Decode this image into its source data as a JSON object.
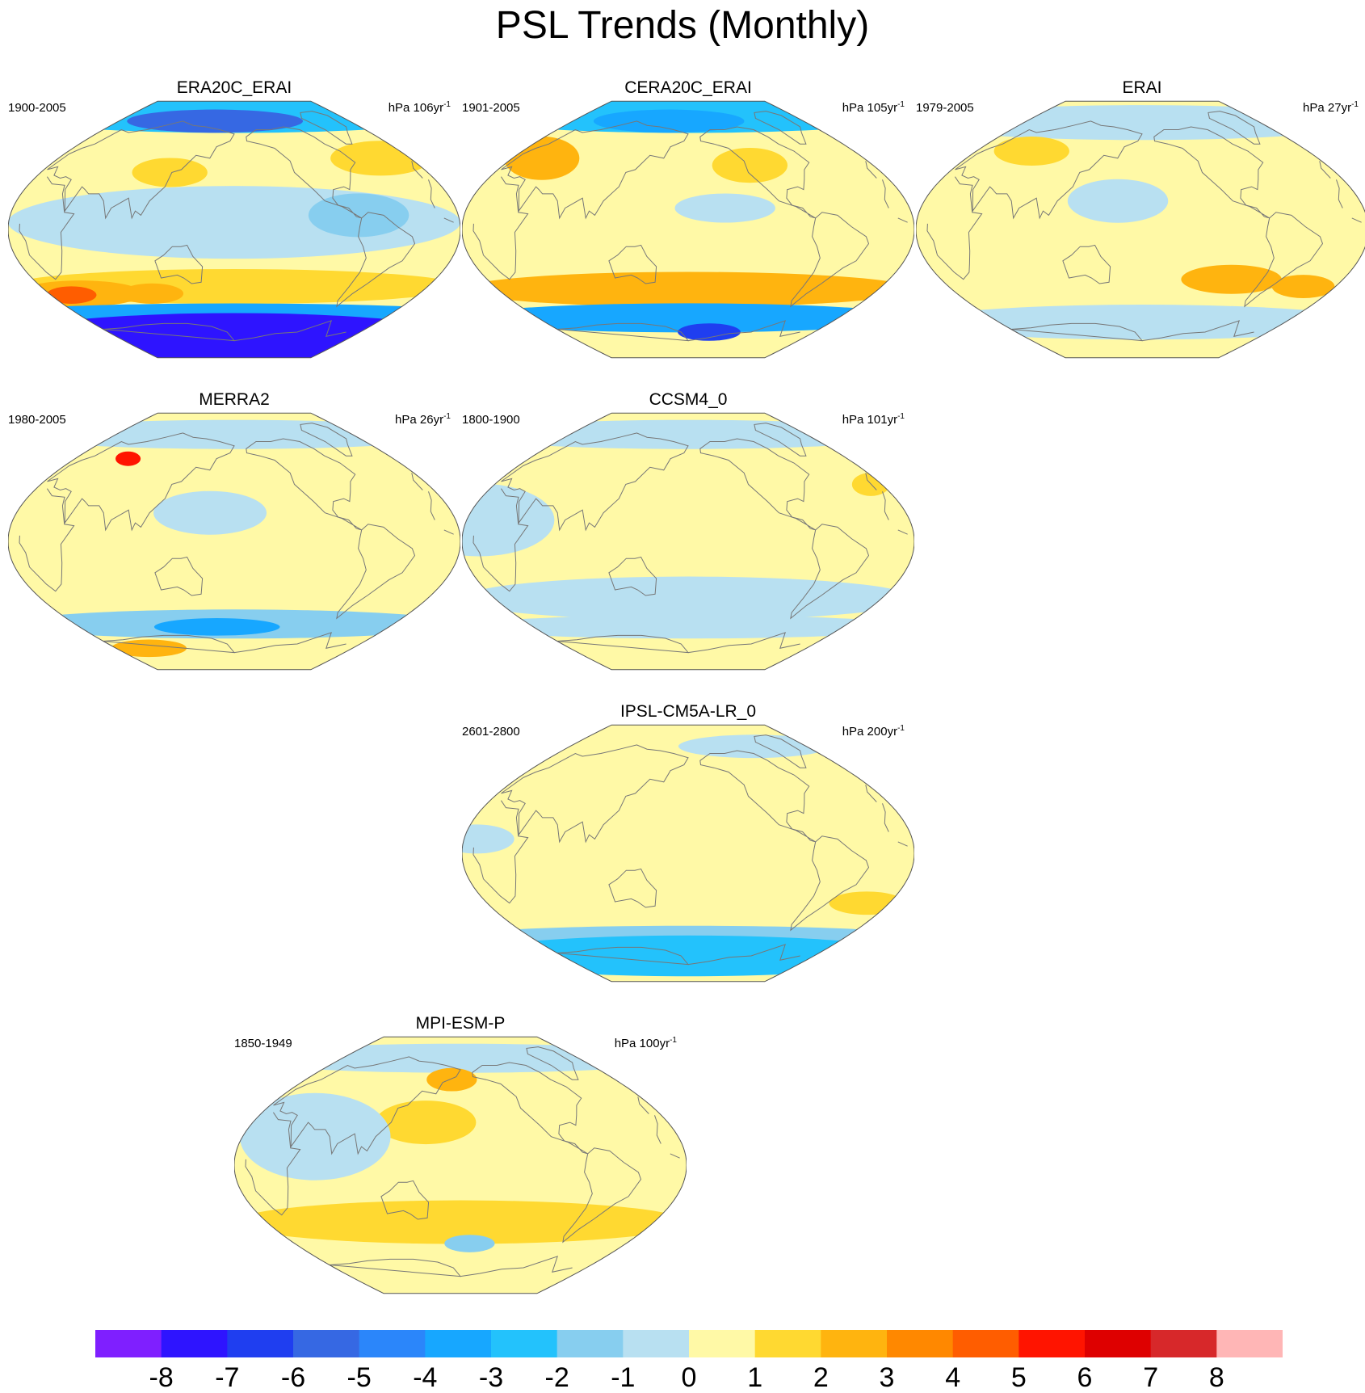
{
  "figure": {
    "title": "PSL Trends (Monthly)"
  },
  "panels": [
    {
      "id": "era20c",
      "title": "ERA20C_ERAI",
      "period": "1900-2005",
      "units": "hPa 106yr",
      "units_exp": "-1",
      "blobs": [
        {
          "lon": 0,
          "lat": 80,
          "rx": 180,
          "ry": 12,
          "level": -3
        },
        {
          "lon": -30,
          "lat": 76,
          "rx": 70,
          "ry": 8,
          "level": -6
        },
        {
          "lon": 150,
          "lat": 50,
          "rx": 40,
          "ry": 12,
          "level": 1
        },
        {
          "lon": -60,
          "lat": 40,
          "rx": 30,
          "ry": 10,
          "level": 1
        },
        {
          "lon": 0,
          "lat": 5,
          "rx": 180,
          "ry": 25,
          "level": -1
        },
        {
          "lon": 100,
          "lat": 10,
          "rx": 40,
          "ry": 15,
          "level": -2
        },
        {
          "lon": 0,
          "lat": -40,
          "rx": 180,
          "ry": 12,
          "level": 1
        },
        {
          "lon": -150,
          "lat": -45,
          "rx": 50,
          "ry": 9,
          "level": 2
        },
        {
          "lon": -160,
          "lat": -46,
          "rx": 20,
          "ry": 6,
          "level": 4
        },
        {
          "lon": -80,
          "lat": -45,
          "rx": 25,
          "ry": 7,
          "level": 2
        },
        {
          "lon": 0,
          "lat": -58,
          "rx": 180,
          "ry": 6,
          "level": -4
        },
        {
          "lon": 0,
          "lat": -75,
          "rx": 180,
          "ry": 16,
          "level": -8
        }
      ]
    },
    {
      "id": "cera20c",
      "title": "CERA20C_ERAI",
      "period": "1901-2005",
      "units": "hPa 105yr",
      "units_exp": "-1",
      "blobs": [
        {
          "lon": 0,
          "lat": 80,
          "rx": 180,
          "ry": 12,
          "level": -3
        },
        {
          "lon": -30,
          "lat": 76,
          "rx": 60,
          "ry": 8,
          "level": -4
        },
        {
          "lon": -150,
          "lat": 50,
          "rx": 30,
          "ry": 15,
          "level": 2
        },
        {
          "lon": 60,
          "lat": 45,
          "rx": 30,
          "ry": 12,
          "level": 1
        },
        {
          "lon": 30,
          "lat": 15,
          "rx": 40,
          "ry": 10,
          "level": -1
        },
        {
          "lon": 0,
          "lat": -42,
          "rx": 180,
          "ry": 12,
          "level": 2
        },
        {
          "lon": 0,
          "lat": -62,
          "rx": 180,
          "ry": 10,
          "level": -4
        },
        {
          "lon": 30,
          "lat": -72,
          "rx": 25,
          "ry": 6,
          "level": -7
        }
      ]
    },
    {
      "id": "erai",
      "title": "ERAI",
      "period": "1979-2005",
      "units": "hPa 27yr",
      "units_exp": "-1",
      "blobs": [
        {
          "lon": 0,
          "lat": 75,
          "rx": 180,
          "ry": 12,
          "level": -1
        },
        {
          "lon": -120,
          "lat": 55,
          "rx": 30,
          "ry": 10,
          "level": 1
        },
        {
          "lon": -20,
          "lat": 20,
          "rx": 40,
          "ry": 15,
          "level": -1
        },
        {
          "lon": 80,
          "lat": -35,
          "rx": 40,
          "ry": 10,
          "level": 2
        },
        {
          "lon": 150,
          "lat": -40,
          "rx": 25,
          "ry": 8,
          "level": 2
        },
        {
          "lon": 0,
          "lat": -65,
          "rx": 180,
          "ry": 12,
          "level": -1
        }
      ]
    },
    {
      "id": "merra2",
      "title": "MERRA2",
      "period": "1980-2005",
      "units": "hPa 26yr",
      "units_exp": "-1",
      "blobs": [
        {
          "lon": 0,
          "lat": 75,
          "rx": 180,
          "ry": 10,
          "level": -1
        },
        {
          "lon": -120,
          "lat": 58,
          "rx": 10,
          "ry": 5,
          "level": 5
        },
        {
          "lon": -20,
          "lat": 20,
          "rx": 45,
          "ry": 15,
          "level": -1
        },
        {
          "lon": 0,
          "lat": -58,
          "rx": 180,
          "ry": 10,
          "level": -2
        },
        {
          "lon": -20,
          "lat": -60,
          "rx": 50,
          "ry": 6,
          "level": -4
        },
        {
          "lon": -130,
          "lat": -75,
          "rx": 30,
          "ry": 6,
          "level": 2
        }
      ]
    },
    {
      "id": "ccsm4",
      "title": "CCSM4_0",
      "period": "1800-1900",
      "units": "hPa 101yr",
      "units_exp": "-1",
      "blobs": [
        {
          "lon": 0,
          "lat": 75,
          "rx": 180,
          "ry": 10,
          "level": -1
        },
        {
          "lon": -170,
          "lat": 15,
          "rx": 60,
          "ry": 25,
          "level": -1
        },
        {
          "lon": 170,
          "lat": 40,
          "rx": 15,
          "ry": 8,
          "level": 1
        },
        {
          "lon": 0,
          "lat": -40,
          "rx": 180,
          "ry": 15,
          "level": -1
        },
        {
          "lon": 0,
          "lat": -60,
          "rx": 180,
          "ry": 8,
          "level": -1
        }
      ]
    },
    {
      "id": "ipsl",
      "title": "IPSL-CM5A-LR_0",
      "period": "2601-2800",
      "units": "hPa 200yr",
      "units_exp": "-1",
      "blobs": [
        {
          "lon": 100,
          "lat": 75,
          "rx": 60,
          "ry": 8,
          "level": -1
        },
        {
          "lon": -170,
          "lat": 10,
          "rx": 30,
          "ry": 10,
          "level": -1
        },
        {
          "lon": 160,
          "lat": -35,
          "rx": 30,
          "ry": 8,
          "level": 1
        },
        {
          "lon": 0,
          "lat": -58,
          "rx": 180,
          "ry": 7,
          "level": -2
        },
        {
          "lon": 0,
          "lat": -72,
          "rx": 180,
          "ry": 14,
          "level": -3
        }
      ]
    },
    {
      "id": "mpi",
      "title": "MPI-ESM-P",
      "period": "1850-1949",
      "units": "hPa 100yr",
      "units_exp": "-1",
      "blobs": [
        {
          "lon": 0,
          "lat": 75,
          "rx": 180,
          "ry": 10,
          "level": -1
        },
        {
          "lon": -30,
          "lat": 30,
          "rx": 40,
          "ry": 15,
          "level": 1
        },
        {
          "lon": 0,
          "lat": -40,
          "rx": 180,
          "ry": 15,
          "level": 1
        },
        {
          "lon": -10,
          "lat": 60,
          "rx": 20,
          "ry": 8,
          "level": 2
        },
        {
          "lon": 10,
          "lat": -55,
          "rx": 20,
          "ry": 6,
          "level": -2
        },
        {
          "lon": -120,
          "lat": 20,
          "rx": 60,
          "ry": 30,
          "level": -1
        }
      ]
    }
  ],
  "colorbar": {
    "colors": [
      "#7f1fff",
      "#2e14ff",
      "#1f3ef0",
      "#3668e3",
      "#2b86fa",
      "#17a7ff",
      "#23c2fc",
      "#87ceef",
      "#b8e0f1",
      "#fff9a6",
      "#ffd931",
      "#ffb40f",
      "#ff8800",
      "#ff5d00",
      "#ff1400",
      "#de0000",
      "#d7282a",
      "#ffb6b6"
    ],
    "labels": [
      "-8",
      "-7",
      "-6",
      "-5",
      "-4",
      "-3",
      "-2",
      "-1",
      "0",
      "1",
      "2",
      "3",
      "4",
      "5",
      "6",
      "7",
      "8"
    ],
    "levels": [
      -9,
      -8,
      -7,
      -6,
      -5,
      -4,
      -3,
      -2,
      -1,
      0,
      1,
      2,
      3,
      4,
      5,
      6,
      7,
      8
    ]
  },
  "background_color": "#fff9a6",
  "coast_color": "#777777"
}
